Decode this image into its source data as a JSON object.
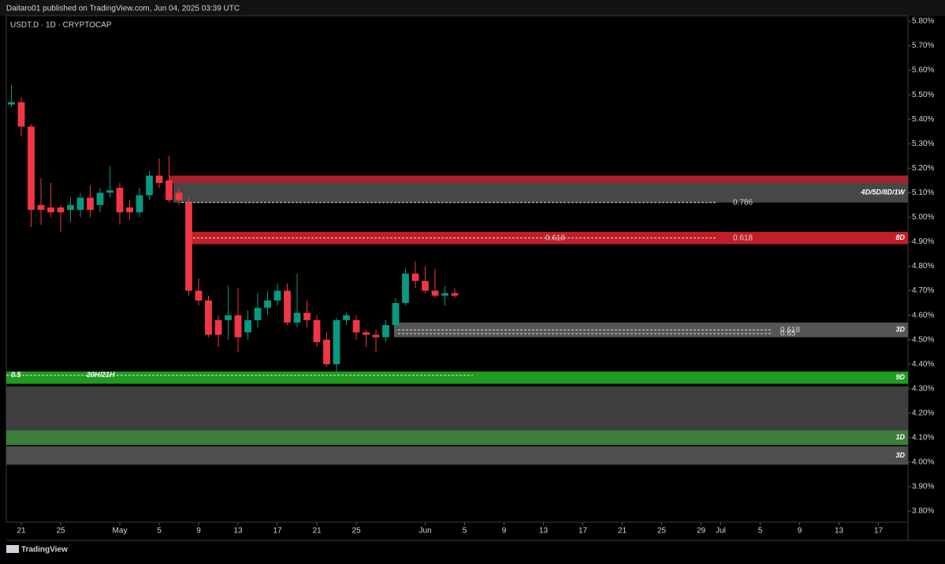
{
  "header": {
    "publisher": "Daitaro01 published on TradingView.com, Jun 04, 2025 03:39 UTC",
    "brand": "TradingView"
  },
  "chart_data": {
    "type": "candlestick",
    "title": "USDT.D · 1D · CRYPTOCAP",
    "up_color": "#089981",
    "down_color": "#f23645",
    "xlim": [
      -1.52,
      90
    ],
    "ylim": [
      3.755,
      5.8225
    ],
    "yticks": [
      {
        "value": 3.8,
        "label": "3.80%"
      },
      {
        "value": 3.9,
        "label": "3.90%"
      },
      {
        "value": 4.0,
        "label": "4.00%"
      },
      {
        "value": 4.1,
        "label": "4.10%"
      },
      {
        "value": 4.2,
        "label": "4.20%"
      },
      {
        "value": 4.3,
        "label": "4.30%"
      },
      {
        "value": 4.4,
        "label": "4.40%"
      },
      {
        "value": 4.5,
        "label": "4.50%"
      },
      {
        "value": 4.6,
        "label": "4.60%"
      },
      {
        "value": 4.7,
        "label": "4.70%"
      },
      {
        "value": 4.8,
        "label": "4.80%"
      },
      {
        "value": 4.9,
        "label": "4.90%"
      },
      {
        "value": 5.0,
        "label": "5.00%"
      },
      {
        "value": 5.1,
        "label": "5.10%"
      },
      {
        "value": 5.2,
        "label": "5.20%"
      },
      {
        "value": 5.3,
        "label": "5.30%"
      },
      {
        "value": 5.4,
        "label": "5.40%"
      },
      {
        "value": 5.5,
        "label": "5.50%"
      },
      {
        "value": 5.6,
        "label": "5.60%"
      },
      {
        "value": 5.7,
        "label": "5.70%"
      },
      {
        "value": 5.8,
        "label": "5.80%"
      }
    ],
    "xticks": [
      {
        "value": 0,
        "label": "21"
      },
      {
        "value": 4,
        "label": "25"
      },
      {
        "value": 10,
        "label": "May"
      },
      {
        "value": 14,
        "label": "5"
      },
      {
        "value": 18,
        "label": "9"
      },
      {
        "value": 22,
        "label": "13"
      },
      {
        "value": 26,
        "label": "17"
      },
      {
        "value": 30,
        "label": "21"
      },
      {
        "value": 34,
        "label": "25"
      },
      {
        "value": 41,
        "label": "Jun"
      },
      {
        "value": 45,
        "label": "5"
      },
      {
        "value": 49,
        "label": "9"
      },
      {
        "value": 53,
        "label": "13"
      },
      {
        "value": 57,
        "label": "17"
      },
      {
        "value": 61,
        "label": "21"
      },
      {
        "value": 65,
        "label": "25"
      },
      {
        "value": 69,
        "label": "29"
      },
      {
        "value": 71,
        "label": "Jul"
      },
      {
        "value": 75,
        "label": "5"
      },
      {
        "value": 79,
        "label": "9"
      },
      {
        "value": 83,
        "label": "13"
      },
      {
        "value": 87,
        "label": "17"
      }
    ],
    "x": [
      -1,
      0,
      1,
      2,
      3,
      4,
      5,
      6,
      7,
      8,
      9,
      10,
      11,
      12,
      13,
      14,
      15,
      16,
      17,
      18,
      19,
      20,
      21,
      22,
      23,
      24,
      25,
      26,
      27,
      28,
      29,
      30,
      31,
      32,
      33,
      34,
      35,
      36,
      37,
      38,
      39,
      40,
      41,
      42,
      43,
      44
    ],
    "open": [
      5.46,
      5.47,
      5.37,
      5.05,
      5.04,
      5.04,
      5.03,
      5.03,
      5.08,
      5.05,
      5.1,
      5.12,
      5.04,
      5.02,
      5.09,
      5.17,
      5.15,
      5.1,
      5.06,
      4.7,
      4.66,
      4.58,
      4.58,
      4.6,
      4.53,
      4.58,
      4.63,
      4.66,
      4.7,
      4.57,
      4.61,
      4.58,
      4.5,
      4.4,
      4.58,
      4.58,
      4.53,
      4.52,
      4.51,
      4.56,
      4.65,
      4.77,
      4.74,
      4.7,
      4.68,
      4.69
    ],
    "high": [
      5.54,
      5.49,
      5.38,
      5.16,
      5.14,
      5.05,
      5.08,
      5.1,
      5.13,
      5.12,
      5.21,
      5.14,
      5.07,
      5.12,
      5.19,
      5.24,
      5.25,
      5.12,
      5.08,
      4.75,
      4.68,
      4.6,
      4.72,
      4.71,
      4.62,
      4.69,
      4.7,
      4.73,
      4.73,
      4.77,
      4.66,
      4.6,
      4.53,
      4.59,
      4.61,
      4.6,
      4.54,
      4.54,
      4.58,
      4.67,
      4.79,
      4.82,
      4.8,
      4.79,
      4.72,
      4.71
    ],
    "low": [
      5.45,
      5.33,
      4.96,
      4.97,
      5.0,
      4.94,
      4.98,
      5.0,
      5.0,
      5.02,
      5.08,
      4.97,
      4.99,
      5.0,
      5.07,
      5.12,
      5.06,
      5.05,
      4.68,
      4.64,
      4.51,
      4.47,
      4.5,
      4.45,
      4.5,
      4.55,
      4.6,
      4.64,
      4.56,
      4.55,
      4.55,
      4.47,
      4.39,
      4.36,
      4.56,
      4.5,
      4.47,
      4.45,
      4.49,
      4.53,
      4.64,
      4.71,
      4.69,
      4.67,
      4.64,
      4.67
    ],
    "close": [
      5.47,
      5.37,
      5.03,
      5.03,
      5.02,
      5.02,
      5.05,
      5.08,
      5.03,
      5.1,
      5.11,
      5.02,
      5.02,
      5.09,
      5.17,
      5.14,
      5.07,
      5.07,
      4.7,
      4.66,
      4.52,
      4.52,
      4.6,
      4.51,
      4.58,
      4.63,
      4.66,
      4.7,
      4.57,
      4.61,
      4.58,
      4.49,
      4.4,
      4.58,
      4.6,
      4.53,
      4.52,
      4.51,
      4.56,
      4.65,
      4.77,
      4.74,
      4.7,
      4.68,
      4.69,
      4.68
    ],
    "zones": [
      {
        "from": 5.14,
        "to": 5.17,
        "color": "#a8222c"
      },
      {
        "label": "4D/5D/8D/1W",
        "from": 5.06,
        "to": 5.14,
        "color": "#474747"
      },
      {
        "label": "8D",
        "from": 4.89,
        "to": 4.94,
        "color": "#c01e28"
      },
      {
        "label": "3D",
        "from": 4.51,
        "to": 4.57,
        "color": "#555555"
      },
      {
        "label": "9D",
        "from": 4.32,
        "to": 4.37,
        "color": "#1f9b1f"
      },
      {
        "from": 4.13,
        "to": 4.31,
        "color": "#3f3f3f"
      },
      {
        "label": "1D",
        "from": 4.07,
        "to": 4.13,
        "color": "#3c7d3c"
      },
      {
        "label": "3D",
        "from": 3.99,
        "to": 4.065,
        "color": "#4e4e4e"
      }
    ],
    "levels": [
      {
        "value": 5.06,
        "labels": [
          "0.786"
        ]
      },
      {
        "value": 4.915,
        "labels": [
          "0.618",
          "0.618"
        ]
      },
      {
        "value": 4.54,
        "labels": [
          "0.618"
        ]
      },
      {
        "value": 4.525,
        "labels": [
          "0.65"
        ]
      },
      {
        "value": 4.355,
        "labels": [
          "0.5",
          "20H/21H"
        ]
      }
    ]
  }
}
